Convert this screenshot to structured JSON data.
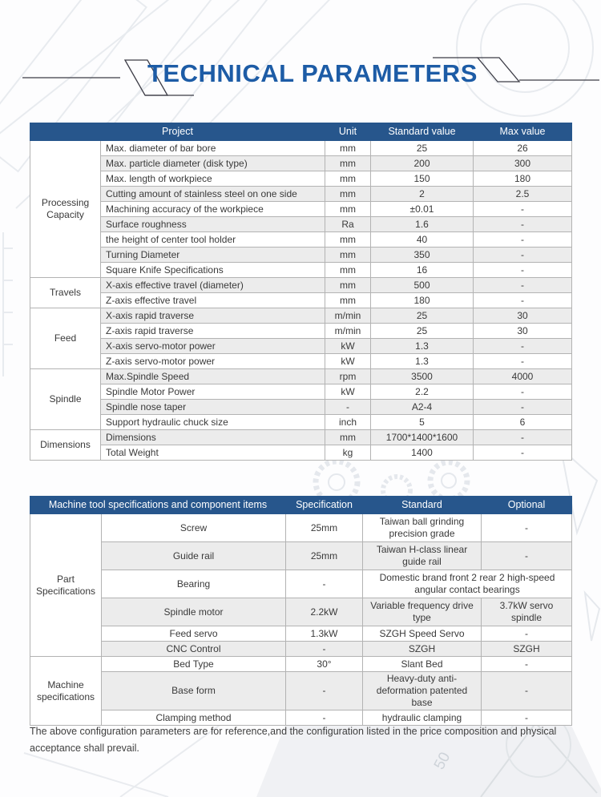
{
  "page": {
    "title": "TECHNICAL PARAMETERS",
    "footer_note": "The above configuration parameters are for reference,and the configuration listed in the price composition and physical acceptance shall prevail."
  },
  "colors": {
    "title_blue": "#1d5ca6",
    "table_header_blue": "#27568c",
    "stripe_gray": "#ececec",
    "border_gray": "#b3b3b3"
  },
  "parameters_table": {
    "headers": [
      "Project",
      "Unit",
      "Standard value",
      "Max value"
    ],
    "groups": [
      {
        "label": "Processing Capacity",
        "rows": [
          [
            "Max. diameter of bar bore",
            "mm",
            "25",
            "26"
          ],
          [
            "Max. particle diameter (disk type)",
            "mm",
            "200",
            "300"
          ],
          [
            "Max. length of workpiece",
            "mm",
            "150",
            "180"
          ],
          [
            "Cutting amount of stainless steel on one side",
            "mm",
            "2",
            "2.5"
          ],
          [
            "Machining accuracy of the workpiece",
            "mm",
            "±0.01",
            "-"
          ],
          [
            "Surface roughness",
            "Ra",
            "1.6",
            "-"
          ],
          [
            "the height of center tool holder",
            "mm",
            "40",
            "-"
          ],
          [
            "Turning Diameter",
            "mm",
            "350",
            "-"
          ],
          [
            "Square Knife Specifications",
            "mm",
            "16",
            "-"
          ]
        ]
      },
      {
        "label": "Travels",
        "rows": [
          [
            "X-axis  effective travel (diameter)",
            "mm",
            "500",
            "-"
          ],
          [
            "Z-axis effective  travel",
            "mm",
            "180",
            "-"
          ]
        ]
      },
      {
        "label": "Feed",
        "rows": [
          [
            "X-axis rapid traverse",
            "m/min",
            "25",
            "30"
          ],
          [
            "Z-axis rapid traverse",
            "m/min",
            "25",
            "30"
          ],
          [
            "X-axis servo-motor power",
            "kW",
            "1.3",
            "-"
          ],
          [
            "Z-axis servo-motor power",
            "kW",
            "1.3",
            "-"
          ]
        ]
      },
      {
        "label": "Spindle",
        "rows": [
          [
            "Max.Spindle Speed",
            "rpm",
            "3500",
            "4000"
          ],
          [
            "Spindle Motor Power",
            "kW",
            "2.2",
            "-"
          ],
          [
            "Spindle nose taper",
            "-",
            "A2-4",
            "-"
          ],
          [
            "Support hydraulic chuck size",
            "inch",
            "5",
            "6"
          ]
        ]
      },
      {
        "label": "Dimensions",
        "rows": [
          [
            "Dimensions",
            "mm",
            "1700*1400*1600",
            "-"
          ],
          [
            "Total Weight",
            "kg",
            "1400",
            "-"
          ]
        ]
      }
    ]
  },
  "specs_table": {
    "headers": [
      "Machine tool specifications and component items",
      "Specification",
      "Standard",
      "Optional"
    ],
    "groups": [
      {
        "label": "Part Specifications",
        "rows": [
          {
            "item": "Screw",
            "spec": "25mm",
            "standard": "Taiwan ball grinding precision grade",
            "optional": "-",
            "tall": true
          },
          {
            "item": "Guide rail",
            "spec": "25mm",
            "standard": "Taiwan H-class linear guide rail",
            "optional": "-",
            "tall": true
          },
          {
            "item": "Bearing",
            "spec": "-",
            "standard": "Domestic brand front 2 rear 2 high-speed angular contact bearings",
            "optional": null,
            "tall": true
          },
          {
            "item": "Spindle motor",
            "spec": "2.2kW",
            "standard": "Variable frequency drive type",
            "optional": "3.7kW servo spindle",
            "tall": true
          },
          {
            "item": "Feed servo",
            "spec": "1.3kW",
            "standard": "SZGH Speed Servo",
            "optional": "-"
          },
          {
            "item": "CNC Control",
            "spec": "-",
            "standard": "SZGH",
            "optional": "SZGH"
          }
        ]
      },
      {
        "label": "Machine specifications",
        "rows": [
          {
            "item": "Bed Type",
            "spec": "30°",
            "standard": "Slant Bed",
            "optional": "-"
          },
          {
            "item": "Base form",
            "spec": "-",
            "standard": "Heavy-duty anti-deformation patented base",
            "optional": "-",
            "tall": true
          },
          {
            "item": "Clamping method",
            "spec": "-",
            "standard": "hydraulic clamping",
            "optional": "-"
          }
        ]
      }
    ]
  }
}
